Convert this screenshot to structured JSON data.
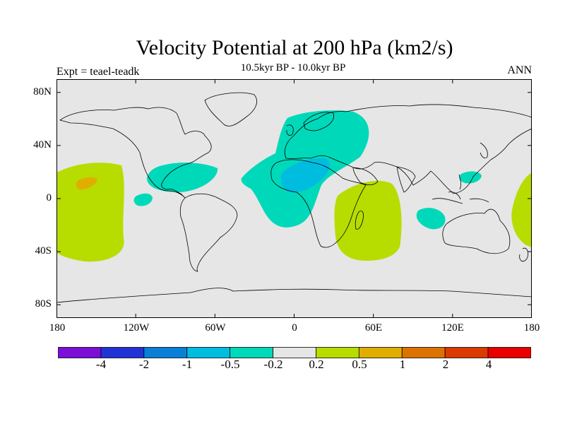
{
  "title": "Velocity Potential at 200 hPa (km2/s)",
  "subtitle": "10.5kyr BP - 10.0kyr BP",
  "expt_label": "Expt = teael-teadk",
  "season": "ANN",
  "map": {
    "projection": "cylindrical-equidistant",
    "lon_range": [
      -180,
      180
    ],
    "lat_range": [
      -90,
      90
    ],
    "background": "#e6e6e6",
    "coastline_color": "#000000",
    "lat_ticks": [
      {
        "value": 80,
        "label": "80N"
      },
      {
        "value": 40,
        "label": "40N"
      },
      {
        "value": 0,
        "label": "0"
      },
      {
        "value": -40,
        "label": "40S"
      },
      {
        "value": -80,
        "label": "80S"
      }
    ],
    "lon_ticks": [
      {
        "value": -180,
        "label": "180"
      },
      {
        "value": -120,
        "label": "120W"
      },
      {
        "value": -60,
        "label": "60W"
      },
      {
        "value": 0,
        "label": "0"
      },
      {
        "value": 60,
        "label": "60E"
      },
      {
        "value": 120,
        "label": "120E"
      },
      {
        "value": 180,
        "label": "180"
      }
    ]
  },
  "colorbar": {
    "colors": [
      "#7b0fd6",
      "#2233d6",
      "#0a7fd8",
      "#00bde0",
      "#00d9b9",
      "#e6e6e6",
      "#b7dc00",
      "#dfae00",
      "#dc7200",
      "#dc3a00",
      "#e80000"
    ],
    "labels": [
      "-4",
      "-2",
      "-1",
      "-0.5",
      "-0.2",
      "0.2",
      "0.5",
      "1",
      "2",
      "4"
    ]
  },
  "chart_data": {
    "type": "filled-contour-map",
    "variable": "velocity potential difference at 200 hPa (km2/s)",
    "levels": [
      -4,
      -2,
      -1,
      -0.5,
      -0.2,
      0.2,
      0.5,
      1,
      2,
      4
    ],
    "regions": [
      {
        "name": "Europe / Mediterranean / North Africa",
        "lon_center": 20,
        "lat_center": 20,
        "class": "-0.5 to -0.2"
      },
      {
        "name": "Eastern Mediterranean to Arabia core",
        "lon_center": 20,
        "lat_center": 18,
        "class": "-1 to -0.5"
      },
      {
        "name": "Caribbean",
        "lon_center": -75,
        "lat_center": 15,
        "class": "-0.5 to -0.2"
      },
      {
        "name": "Eastern tropical Pacific",
        "lon_center": -115,
        "lat_center": 0,
        "class": "-0.5 to -0.2"
      },
      {
        "name": "Off northwest Australia",
        "lon_center": 105,
        "lat_center": -15,
        "class": "-0.5 to -0.2"
      },
      {
        "name": "Philippine Sea",
        "lon_center": 135,
        "lat_center": 15,
        "class": "-0.5 to -0.2"
      },
      {
        "name": "Central Pacific",
        "lon_center": -160,
        "lat_center": 0,
        "class": "0.2 to 0.5"
      },
      {
        "name": "Central Pacific core",
        "lon_center": -170,
        "lat_center": 10,
        "class": "0.5 to 1"
      },
      {
        "name": "Southern Africa / Indian Ocean",
        "lon_center": 45,
        "lat_center": -25,
        "class": "0.2 to 0.5"
      },
      {
        "name": "Western Pacific near dateline",
        "lon_center": 170,
        "lat_center": -5,
        "class": "0.2 to 0.5"
      }
    ]
  }
}
